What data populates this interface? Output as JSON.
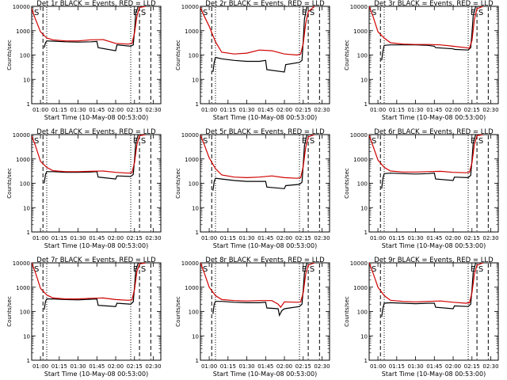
{
  "figure": {
    "xlabel": "Start Time (10-May-08 00:53:00)",
    "ylabel": "Counts/sec",
    "time_labels": [
      "01:00",
      "01:15",
      "01:30",
      "01:45",
      "02:00",
      "02:15",
      "02:30"
    ],
    "ytick_labels": [
      "1",
      "10",
      "100",
      "1000",
      "10000"
    ],
    "marker_E": "E",
    "marker_S": "S",
    "marker_S_left": "S"
  },
  "chart_data": [
    {
      "type": "line",
      "title": "Det 1r BLACK = Events, RED = LLD",
      "xlabel": "Start Time (10-May-08 00:53:00)",
      "ylabel": "Counts/sec",
      "yscale": "log",
      "ylim": [
        1,
        10000
      ],
      "xlim": [
        "00:53",
        "02:36"
      ],
      "dashed_lines": [
        "01:02",
        "02:19",
        "02:28"
      ],
      "dotted_lines": [
        "01:05",
        "02:12"
      ],
      "series": [
        {
          "name": "Events",
          "color": "#000000",
          "x": [
            "01:03",
            "01:04",
            "01:05",
            "01:10",
            "01:20",
            "01:30",
            "01:40",
            "01:45",
            "01:46",
            "02:00",
            "02:01",
            "02:12",
            "02:14",
            "02:15",
            "02:16",
            "02:18",
            "02:20",
            "02:24"
          ],
          "y": [
            200,
            320,
            380,
            370,
            350,
            340,
            350,
            360,
            200,
            150,
            260,
            230,
            260,
            1000,
            5000,
            10000,
            10000,
            10000
          ]
        },
        {
          "name": "LLD",
          "color": "#d00000",
          "x": [
            "00:53",
            "00:56",
            "01:00",
            "01:05",
            "01:10",
            "01:20",
            "01:30",
            "01:40",
            "01:50",
            "02:00",
            "02:10",
            "02:13",
            "02:15",
            "02:17",
            "02:19",
            "02:24"
          ],
          "y": [
            8000,
            3000,
            900,
            500,
            420,
            380,
            380,
            420,
            430,
            300,
            280,
            300,
            800,
            4000,
            9000,
            10000
          ]
        }
      ]
    },
    {
      "type": "line",
      "title": "Det 2r BLACK = Events, RED = LLD",
      "xlabel": "Start Time (10-May-08 00:53:00)",
      "ylabel": "Counts/sec",
      "yscale": "log",
      "ylim": [
        1,
        10000
      ],
      "xlim": [
        "00:53",
        "02:36"
      ],
      "dashed_lines": [
        "01:02",
        "02:19",
        "02:28"
      ],
      "dotted_lines": [
        "01:05",
        "02:12"
      ],
      "series": [
        {
          "name": "Events",
          "color": "#000000",
          "x": [
            "01:03",
            "01:04",
            "01:05",
            "01:10",
            "01:20",
            "01:30",
            "01:40",
            "01:45",
            "01:46",
            "02:00",
            "02:01",
            "02:12",
            "02:14",
            "02:15",
            "02:16",
            "02:18",
            "02:20",
            "02:24"
          ],
          "y": [
            20,
            50,
            80,
            70,
            60,
            55,
            55,
            60,
            25,
            20,
            40,
            50,
            60,
            400,
            3000,
            10000,
            10000,
            10000
          ]
        },
        {
          "name": "LLD",
          "color": "#d00000",
          "x": [
            "00:53",
            "00:56",
            "01:00",
            "01:05",
            "01:10",
            "01:20",
            "01:30",
            "01:40",
            "01:50",
            "02:00",
            "02:10",
            "02:13",
            "02:15",
            "02:17",
            "02:19",
            "02:24"
          ],
          "y": [
            9000,
            4000,
            1500,
            350,
            130,
            110,
            120,
            160,
            150,
            110,
            100,
            110,
            300,
            2000,
            6000,
            10000
          ]
        }
      ]
    },
    {
      "type": "line",
      "title": "Det 3r BLACK = Events, RED = LLD",
      "xlabel": "Start Time (10-May-08 00:53:00)",
      "ylabel": "Counts/sec",
      "yscale": "log",
      "ylim": [
        1,
        10000
      ],
      "xlim": [
        "00:53",
        "02:36"
      ],
      "dashed_lines": [
        "01:02",
        "02:19",
        "02:28"
      ],
      "dotted_lines": [
        "01:05",
        "02:12"
      ],
      "series": [
        {
          "name": "Events",
          "color": "#000000",
          "x": [
            "01:03",
            "01:04",
            "01:05",
            "01:10",
            "01:20",
            "01:30",
            "01:40",
            "01:45",
            "01:46",
            "02:00",
            "02:01",
            "02:12",
            "02:14",
            "02:15",
            "02:16",
            "02:18",
            "02:20",
            "02:24"
          ],
          "y": [
            60,
            150,
            250,
            260,
            260,
            260,
            250,
            230,
            200,
            180,
            170,
            160,
            200,
            800,
            4000,
            10000,
            10000,
            10000
          ]
        },
        {
          "name": "LLD",
          "color": "#d00000",
          "x": [
            "00:53",
            "00:56",
            "01:00",
            "01:05",
            "01:10",
            "01:20",
            "01:30",
            "01:40",
            "01:50",
            "02:00",
            "02:10",
            "02:13",
            "02:15",
            "02:17",
            "02:19",
            "02:24"
          ],
          "y": [
            10000,
            4000,
            900,
            500,
            320,
            280,
            270,
            270,
            260,
            230,
            200,
            190,
            400,
            3000,
            8000,
            10000
          ]
        }
      ]
    },
    {
      "type": "line",
      "title": "Det 4r BLACK = Events, RED = LLD",
      "xlabel": "Start Time (10-May-08 00:53:00)",
      "ylabel": "Counts/sec",
      "yscale": "log",
      "ylim": [
        1,
        10000
      ],
      "xlim": [
        "00:53",
        "02:36"
      ],
      "dashed_lines": [
        "01:02",
        "02:19",
        "02:28"
      ],
      "dotted_lines": [
        "01:05",
        "02:12"
      ],
      "series": [
        {
          "name": "Events",
          "color": "#000000",
          "x": [
            "01:03",
            "01:04",
            "01:05",
            "01:10",
            "01:20",
            "01:30",
            "01:40",
            "01:45",
            "01:46",
            "02:00",
            "02:01",
            "02:12",
            "02:14",
            "02:15",
            "02:16",
            "02:18",
            "02:20",
            "02:24"
          ],
          "y": [
            100,
            230,
            300,
            300,
            280,
            280,
            290,
            300,
            180,
            150,
            200,
            190,
            230,
            900,
            4500,
            10000,
            10000,
            10000
          ]
        },
        {
          "name": "LLD",
          "color": "#d00000",
          "x": [
            "00:53",
            "00:56",
            "01:00",
            "01:05",
            "01:10",
            "01:20",
            "01:30",
            "01:40",
            "01:50",
            "02:00",
            "02:10",
            "02:13",
            "02:15",
            "02:17",
            "02:19",
            "02:24"
          ],
          "y": [
            9000,
            3500,
            800,
            450,
            330,
            300,
            300,
            310,
            320,
            280,
            260,
            270,
            700,
            4000,
            9000,
            10000
          ]
        }
      ]
    },
    {
      "type": "line",
      "title": "Det 5r BLACK = Events, RED = LLD",
      "xlabel": "Start Time (10-May-08 00:53:00)",
      "ylabel": "Counts/sec",
      "yscale": "log",
      "ylim": [
        1,
        10000
      ],
      "xlim": [
        "00:53",
        "02:36"
      ],
      "dashed_lines": [
        "01:02",
        "02:19",
        "02:28"
      ],
      "dotted_lines": [
        "01:05",
        "02:12"
      ],
      "series": [
        {
          "name": "Events",
          "color": "#000000",
          "x": [
            "01:03",
            "01:04",
            "01:05",
            "01:10",
            "01:20",
            "01:30",
            "01:40",
            "01:45",
            "01:46",
            "02:00",
            "02:01",
            "02:12",
            "02:14",
            "02:15",
            "02:16",
            "02:18",
            "02:20",
            "02:24"
          ],
          "y": [
            50,
            120,
            160,
            150,
            130,
            120,
            120,
            120,
            70,
            60,
            80,
            90,
            110,
            600,
            3500,
            10000,
            10000,
            10000
          ]
        },
        {
          "name": "LLD",
          "color": "#d00000",
          "x": [
            "00:53",
            "00:56",
            "01:00",
            "01:05",
            "01:10",
            "01:20",
            "01:30",
            "01:40",
            "01:50",
            "02:00",
            "02:10",
            "02:13",
            "02:15",
            "02:17",
            "02:19",
            "02:24"
          ],
          "y": [
            9500,
            4000,
            1100,
            400,
            220,
            180,
            170,
            180,
            200,
            170,
            160,
            170,
            500,
            3000,
            8000,
            10000
          ]
        }
      ]
    },
    {
      "type": "line",
      "title": "Det 6r BLACK = Events, RED = LLD",
      "xlabel": "Start Time (10-May-08 00:53:00)",
      "ylabel": "Counts/sec",
      "yscale": "log",
      "ylim": [
        1,
        10000
      ],
      "xlim": [
        "00:53",
        "02:36"
      ],
      "dashed_lines": [
        "01:02",
        "02:19",
        "02:28"
      ],
      "dotted_lines": [
        "01:05",
        "02:12"
      ],
      "series": [
        {
          "name": "Events",
          "color": "#000000",
          "x": [
            "01:03",
            "01:04",
            "01:05",
            "01:10",
            "01:20",
            "01:30",
            "01:40",
            "01:45",
            "01:46",
            "02:00",
            "02:01",
            "02:12",
            "02:14",
            "02:15",
            "02:16",
            "02:18",
            "02:20",
            "02:24"
          ],
          "y": [
            60,
            160,
            250,
            260,
            250,
            240,
            250,
            260,
            150,
            130,
            180,
            170,
            210,
            900,
            4500,
            10000,
            10000,
            10000
          ]
        },
        {
          "name": "LLD",
          "color": "#d00000",
          "x": [
            "00:53",
            "00:56",
            "01:00",
            "01:05",
            "01:10",
            "01:20",
            "01:30",
            "01:40",
            "01:50",
            "02:00",
            "02:10",
            "02:13",
            "02:15",
            "02:17",
            "02:19",
            "02:24"
          ],
          "y": [
            9500,
            3500,
            900,
            450,
            320,
            290,
            290,
            300,
            310,
            280,
            270,
            280,
            700,
            4000,
            9000,
            10000
          ]
        }
      ]
    },
    {
      "type": "line",
      "title": "Det 7r BLACK = Events, RED = LLD",
      "xlabel": "Start Time (10-May-08 00:53:00)",
      "ylabel": "Counts/sec",
      "yscale": "log",
      "ylim": [
        1,
        10000
      ],
      "xlim": [
        "00:53",
        "02:36"
      ],
      "dashed_lines": [
        "01:02",
        "02:19",
        "02:28"
      ],
      "dotted_lines": [
        "01:05",
        "02:12"
      ],
      "series": [
        {
          "name": "Events",
          "color": "#000000",
          "x": [
            "01:03",
            "01:04",
            "01:05",
            "01:10",
            "01:20",
            "01:30",
            "01:40",
            "01:45",
            "01:46",
            "02:00",
            "02:01",
            "02:12",
            "02:14",
            "02:15",
            "02:16",
            "02:18",
            "02:20",
            "02:24"
          ],
          "y": [
            120,
            260,
            330,
            330,
            310,
            300,
            320,
            330,
            180,
            160,
            220,
            200,
            250,
            1000,
            5000,
            10000,
            10000,
            10000
          ]
        },
        {
          "name": "LLD",
          "color": "#d00000",
          "x": [
            "00:53",
            "00:56",
            "01:00",
            "01:05",
            "01:10",
            "01:20",
            "01:30",
            "01:40",
            "01:50",
            "02:00",
            "02:10",
            "02:13",
            "02:15",
            "02:17",
            "02:19",
            "02:24"
          ],
          "y": [
            10000,
            4000,
            900,
            480,
            360,
            330,
            330,
            350,
            360,
            310,
            290,
            300,
            800,
            4500,
            9000,
            10000
          ]
        }
      ]
    },
    {
      "type": "line",
      "title": "Det 8r BLACK = Events, RED = LLD",
      "xlabel": "Start Time (10-May-08 00:53:00)",
      "ylabel": "Counts/sec",
      "yscale": "log",
      "ylim": [
        1,
        10000
      ],
      "xlim": [
        "00:53",
        "02:36"
      ],
      "dashed_lines": [
        "01:02",
        "02:19",
        "02:28"
      ],
      "dotted_lines": [
        "01:05",
        "02:12"
      ],
      "series": [
        {
          "name": "Events",
          "color": "#000000",
          "x": [
            "01:03",
            "01:04",
            "01:05",
            "01:10",
            "01:20",
            "01:30",
            "01:40",
            "01:45",
            "01:46",
            "01:55",
            "01:56",
            "01:58",
            "02:00",
            "02:12",
            "02:14",
            "02:15",
            "02:16",
            "02:18",
            "02:20",
            "02:24"
          ],
          "y": [
            80,
            200,
            260,
            260,
            240,
            230,
            230,
            240,
            140,
            130,
            70,
            110,
            130,
            160,
            200,
            800,
            4000,
            10000,
            10000,
            10000
          ]
        },
        {
          "name": "LLD",
          "color": "#d00000",
          "x": [
            "00:53",
            "00:56",
            "01:00",
            "01:05",
            "01:10",
            "01:20",
            "01:30",
            "01:40",
            "01:50",
            "01:55",
            "01:57",
            "02:00",
            "02:10",
            "02:13",
            "02:15",
            "02:17",
            "02:19",
            "02:24"
          ],
          "y": [
            10000,
            4000,
            1000,
            450,
            310,
            280,
            270,
            280,
            280,
            200,
            150,
            250,
            240,
            250,
            600,
            3500,
            8000,
            10000
          ]
        }
      ]
    },
    {
      "type": "line",
      "title": "Det 9r BLACK = Events, RED = LLD",
      "xlabel": "Start Time (10-May-08 00:53:00)",
      "ylabel": "Counts/sec",
      "yscale": "log",
      "ylim": [
        1,
        10000
      ],
      "xlim": [
        "00:53",
        "02:36"
      ],
      "dashed_lines": [
        "01:02",
        "02:19",
        "02:28"
      ],
      "dotted_lines": [
        "01:05",
        "02:12"
      ],
      "series": [
        {
          "name": "Events",
          "color": "#000000",
          "x": [
            "01:03",
            "01:04",
            "01:05",
            "01:10",
            "01:20",
            "01:30",
            "01:40",
            "01:45",
            "01:46",
            "02:00",
            "02:01",
            "02:12",
            "02:14",
            "02:15",
            "02:16",
            "02:18",
            "02:20",
            "02:24"
          ],
          "y": [
            60,
            140,
            220,
            230,
            220,
            210,
            220,
            220,
            150,
            130,
            170,
            160,
            200,
            800,
            4000,
            10000,
            10000,
            10000
          ]
        },
        {
          "name": "LLD",
          "color": "#d00000",
          "x": [
            "00:53",
            "00:56",
            "01:00",
            "01:05",
            "01:10",
            "01:20",
            "01:30",
            "01:40",
            "01:50",
            "02:00",
            "02:10",
            "02:13",
            "02:15",
            "02:17",
            "02:19",
            "02:24"
          ],
          "y": [
            10000,
            4000,
            1000,
            450,
            290,
            260,
            250,
            260,
            270,
            240,
            220,
            230,
            600,
            3500,
            8000,
            10000
          ]
        }
      ]
    }
  ]
}
